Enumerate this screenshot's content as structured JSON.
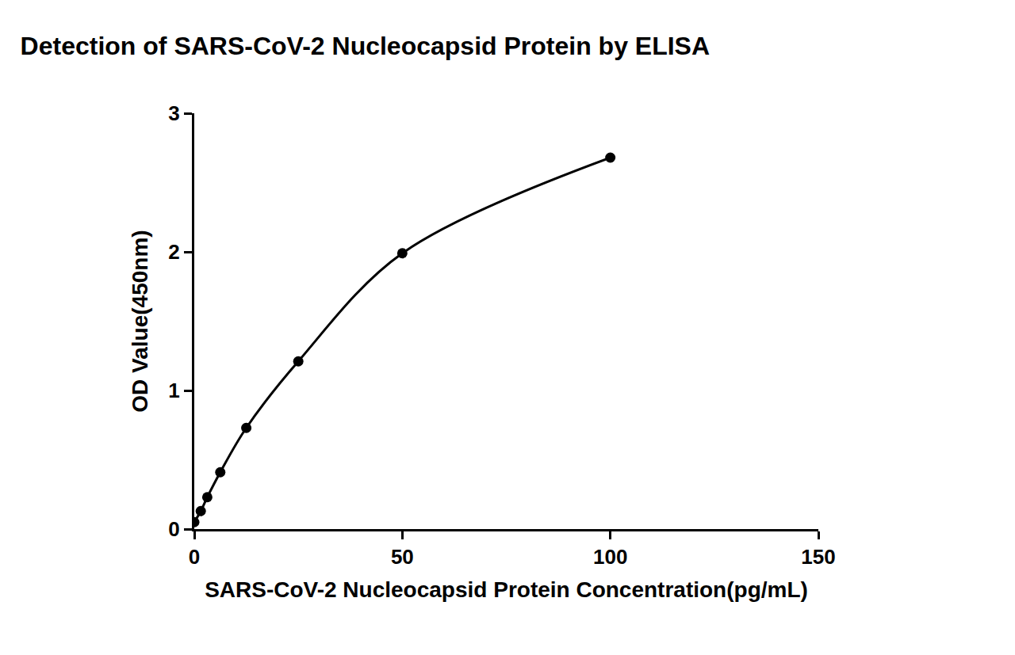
{
  "chart_data": {
    "type": "scatter",
    "title": "Detection of SARS-CoV-2 Nucleocapsid Protein by ELISA",
    "x_label": "SARS-CoV-2 Nucleocapsid Protein Concentration(pg/mL)",
    "y_label": "OD Value(450nm)",
    "x": [
      0,
      1.56,
      3.125,
      6.25,
      12.5,
      25,
      50,
      100
    ],
    "values": [
      0.05,
      0.13,
      0.23,
      0.41,
      0.73,
      1.21,
      1.99,
      2.68
    ],
    "color": "#000000",
    "marker": "circle",
    "line_style": "solid",
    "xlim": [
      0,
      150
    ],
    "xticks": [
      0,
      50,
      100,
      150
    ],
    "ylim": [
      0,
      3
    ],
    "yticks": [
      0,
      1,
      2,
      3
    ],
    "grid": false
  }
}
